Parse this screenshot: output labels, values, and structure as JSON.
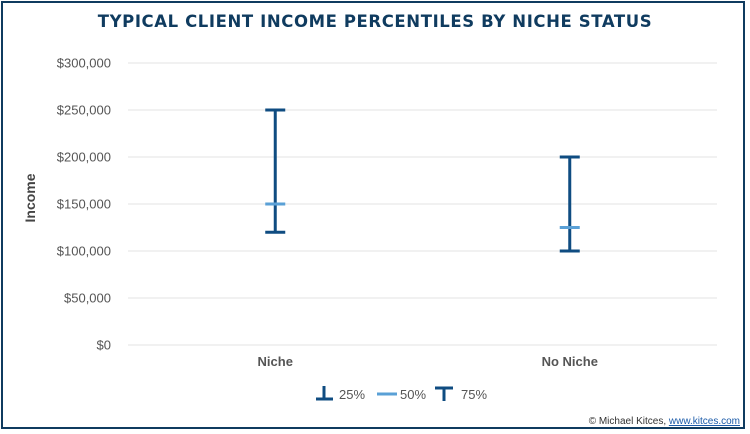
{
  "chart_data": {
    "type": "errorbar",
    "title": "TYPICAL CLIENT INCOME PERCENTILES BY NICHE STATUS",
    "ylabel": "Income",
    "xlabel": "",
    "categories": [
      "Niche",
      "No Niche"
    ],
    "series": [
      {
        "name": "25%",
        "values": [
          120000,
          100000
        ],
        "color": "#0f4c81"
      },
      {
        "name": "50%",
        "values": [
          150000,
          125000
        ],
        "color": "#5aa0d6"
      },
      {
        "name": "75%",
        "values": [
          250000,
          200000
        ],
        "color": "#0f4c81"
      }
    ],
    "ylim": [
      0,
      300000
    ],
    "yticks": [
      0,
      50000,
      100000,
      150000,
      200000,
      250000,
      300000
    ],
    "ytick_labels": [
      "$0",
      "$50,000",
      "$100,000",
      "$150,000",
      "$200,000",
      "$250,000",
      "$300,000"
    ],
    "grid": true,
    "legend_position": "bottom"
  },
  "credit": {
    "text": "© Michael Kitces, ",
    "link": "www.kitces.com"
  }
}
